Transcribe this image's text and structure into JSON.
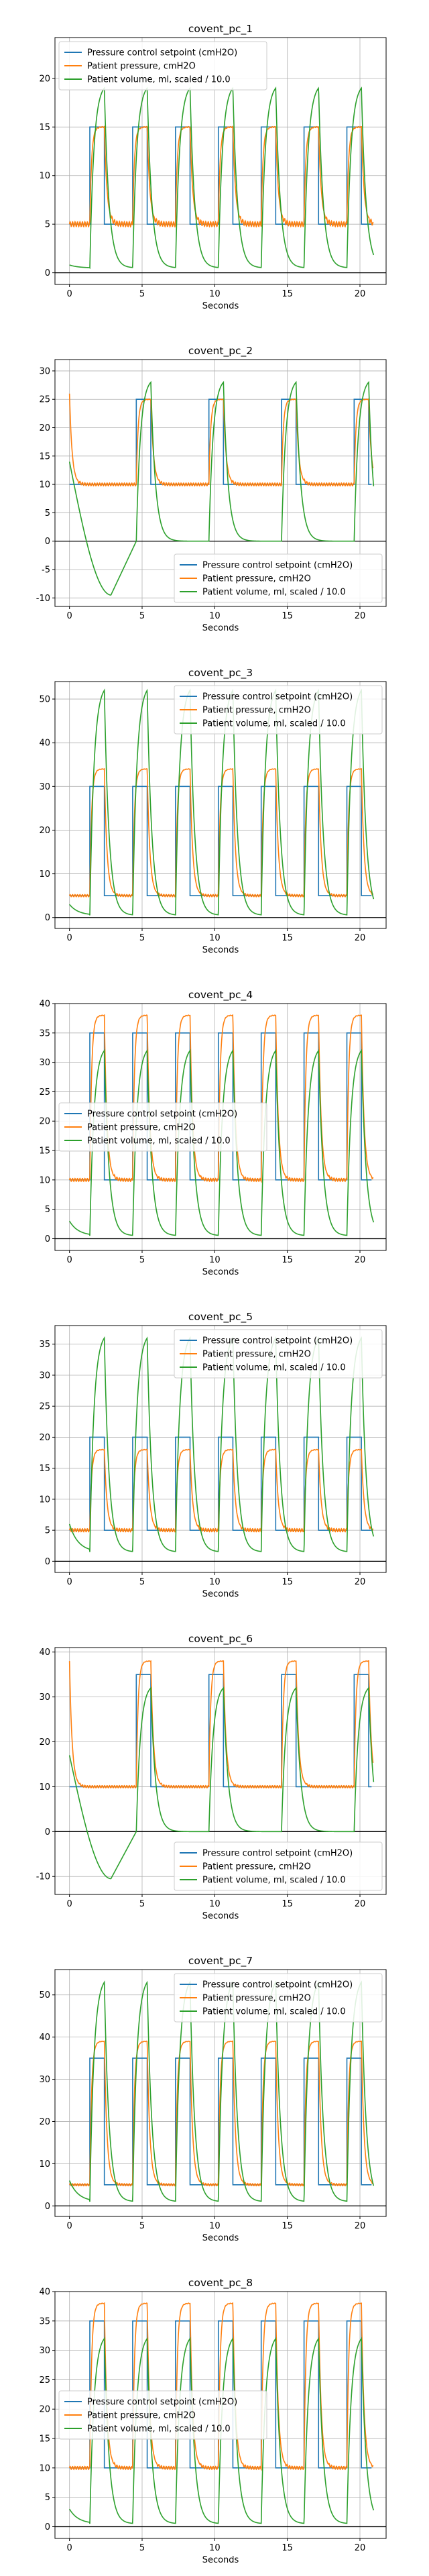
{
  "colors": {
    "setpoint": "#1f77b4",
    "pressure": "#ff7f0e",
    "volume": "#2ca02c",
    "grid": "#b0b0b0",
    "zero_line": "#000000"
  },
  "chart_data": [
    {
      "type": "line",
      "title": "covent_pc_1",
      "xlabel": "Seconds",
      "ylabel": "",
      "xlim": [
        -1,
        21.8
      ],
      "ylim": [
        -1.2,
        24.2
      ],
      "xticks": [
        0,
        5,
        10,
        15,
        20
      ],
      "yticks": [
        0,
        5,
        10,
        15,
        20
      ],
      "grid": true,
      "legend_position": "upper left",
      "zero_line": true,
      "breath": {
        "period": 2.95,
        "first_rise": 1.4,
        "insp_duration": 1.0
      },
      "series": [
        {
          "name": "Pressure control setpoint (cmH2O)",
          "key": "setpoint",
          "low": 5,
          "high": 15
        },
        {
          "name": "Patient pressure, cmH2O",
          "key": "pressure",
          "low": 5,
          "high": 15
        },
        {
          "name": "Patient volume, ml, scaled / 10.0",
          "key": "volume",
          "start": 0.8,
          "peak": 19,
          "trough": 0.5
        }
      ]
    },
    {
      "type": "line",
      "title": "covent_pc_2",
      "xlabel": "Seconds",
      "ylabel": "",
      "xlim": [
        -1,
        21.8
      ],
      "ylim": [
        -11.5,
        32
      ],
      "xticks": [
        0,
        5,
        10,
        15,
        20
      ],
      "yticks": [
        -10,
        -5,
        0,
        5,
        10,
        15,
        20,
        25,
        30
      ],
      "grid": true,
      "legend_position": "lower right",
      "zero_line": true,
      "breath": {
        "period": 5.0,
        "first_rise": 4.6,
        "insp_duration": 1.0
      },
      "series": [
        {
          "name": "Pressure control setpoint (cmH2O)",
          "key": "setpoint",
          "low": 10,
          "high": 25
        },
        {
          "name": "Patient pressure, cmH2O",
          "key": "pressure",
          "low": 10,
          "high": 25,
          "initial_spike": 26
        },
        {
          "name": "Patient volume, ml, scaled / 10.0",
          "key": "volume",
          "start": 14,
          "peak": 28,
          "trough": 0,
          "first_min": -9.5
        }
      ]
    },
    {
      "type": "line",
      "title": "covent_pc_3",
      "xlabel": "Seconds",
      "ylabel": "",
      "xlim": [
        -1,
        21.8
      ],
      "ylim": [
        -2.5,
        54
      ],
      "xticks": [
        0,
        5,
        10,
        15,
        20
      ],
      "yticks": [
        0,
        10,
        20,
        30,
        40,
        50
      ],
      "grid": true,
      "legend_position": "upper right",
      "zero_line": true,
      "breath": {
        "period": 2.95,
        "first_rise": 1.4,
        "insp_duration": 1.0
      },
      "series": [
        {
          "name": "Pressure control setpoint (cmH2O)",
          "key": "setpoint",
          "low": 5,
          "high": 30
        },
        {
          "name": "Patient pressure, cmH2O",
          "key": "pressure",
          "low": 5,
          "high": 34
        },
        {
          "name": "Patient volume, ml, scaled / 10.0",
          "key": "volume",
          "start": 3,
          "peak": 52,
          "trough": 0.5
        }
      ]
    },
    {
      "type": "line",
      "title": "covent_pc_4",
      "xlabel": "Seconds",
      "ylabel": "",
      "xlim": [
        -1,
        21.8
      ],
      "ylim": [
        -2,
        40
      ],
      "xticks": [
        0,
        5,
        10,
        15,
        20
      ],
      "yticks": [
        0,
        5,
        10,
        15,
        20,
        25,
        30,
        35,
        40
      ],
      "grid": true,
      "legend_position": "center left",
      "zero_line": true,
      "breath": {
        "period": 2.95,
        "first_rise": 1.4,
        "insp_duration": 1.0
      },
      "series": [
        {
          "name": "Pressure control setpoint (cmH2O)",
          "key": "setpoint",
          "low": 10,
          "high": 35
        },
        {
          "name": "Patient pressure, cmH2O",
          "key": "pressure",
          "low": 10,
          "high": 38
        },
        {
          "name": "Patient volume, ml, scaled / 10.0",
          "key": "volume",
          "start": 3,
          "peak": 32,
          "trough": 0.5
        }
      ]
    },
    {
      "type": "line",
      "title": "covent_pc_5",
      "xlabel": "Seconds",
      "ylabel": "",
      "xlim": [
        -1,
        21.8
      ],
      "ylim": [
        -1.8,
        38
      ],
      "xticks": [
        0,
        5,
        10,
        15,
        20
      ],
      "yticks": [
        0,
        5,
        10,
        15,
        20,
        25,
        30,
        35
      ],
      "grid": true,
      "legend_position": "upper right",
      "zero_line": true,
      "breath": {
        "period": 2.95,
        "first_rise": 1.4,
        "insp_duration": 1.0
      },
      "series": [
        {
          "name": "Pressure control setpoint (cmH2O)",
          "key": "setpoint",
          "low": 5,
          "high": 20
        },
        {
          "name": "Patient pressure, cmH2O",
          "key": "pressure",
          "low": 5,
          "high": 18
        },
        {
          "name": "Patient volume, ml, scaled / 10.0",
          "key": "volume",
          "start": 6,
          "peak": 36,
          "trough": 1.5
        }
      ]
    },
    {
      "type": "line",
      "title": "covent_pc_6",
      "xlabel": "Seconds",
      "ylabel": "",
      "xlim": [
        -1,
        21.8
      ],
      "ylim": [
        -14,
        41
      ],
      "xticks": [
        0,
        5,
        10,
        15,
        20
      ],
      "yticks": [
        -10,
        0,
        10,
        20,
        30,
        40
      ],
      "grid": true,
      "legend_position": "lower right",
      "zero_line": true,
      "breath": {
        "period": 5.0,
        "first_rise": 4.6,
        "insp_duration": 1.0
      },
      "series": [
        {
          "name": "Pressure control setpoint (cmH2O)",
          "key": "setpoint",
          "low": 10,
          "high": 35
        },
        {
          "name": "Patient pressure, cmH2O",
          "key": "pressure",
          "low": 10,
          "high": 38,
          "initial_spike": 38
        },
        {
          "name": "Patient volume, ml, scaled / 10.0",
          "key": "volume",
          "start": 17,
          "peak": 32,
          "trough": 0,
          "first_min": -10.5
        }
      ]
    },
    {
      "type": "line",
      "title": "covent_pc_7",
      "xlabel": "Seconds",
      "ylabel": "",
      "xlim": [
        -1,
        21.8
      ],
      "ylim": [
        -2.5,
        56
      ],
      "xticks": [
        0,
        5,
        10,
        15,
        20
      ],
      "yticks": [
        0,
        10,
        20,
        30,
        40,
        50
      ],
      "grid": true,
      "legend_position": "upper right",
      "zero_line": true,
      "breath": {
        "period": 2.95,
        "first_rise": 1.4,
        "insp_duration": 1.0
      },
      "series": [
        {
          "name": "Pressure control setpoint (cmH2O)",
          "key": "setpoint",
          "low": 5,
          "high": 35
        },
        {
          "name": "Patient pressure, cmH2O",
          "key": "pressure",
          "low": 5,
          "high": 39
        },
        {
          "name": "Patient volume, ml, scaled / 10.0",
          "key": "volume",
          "start": 6,
          "peak": 53,
          "trough": 1
        }
      ]
    },
    {
      "type": "line",
      "title": "covent_pc_8",
      "xlabel": "Seconds",
      "ylabel": "",
      "xlim": [
        -1,
        21.8
      ],
      "ylim": [
        -2,
        40
      ],
      "xticks": [
        0,
        5,
        10,
        15,
        20
      ],
      "yticks": [
        0,
        5,
        10,
        15,
        20,
        25,
        30,
        35,
        40
      ],
      "grid": true,
      "legend_position": "center left",
      "zero_line": true,
      "breath": {
        "period": 2.95,
        "first_rise": 1.4,
        "insp_duration": 1.0
      },
      "series": [
        {
          "name": "Pressure control setpoint (cmH2O)",
          "key": "setpoint",
          "low": 10,
          "high": 35
        },
        {
          "name": "Patient pressure, cmH2O",
          "key": "pressure",
          "low": 10,
          "high": 38
        },
        {
          "name": "Patient volume, ml, scaled / 10.0",
          "key": "volume",
          "start": 3,
          "peak": 32,
          "trough": 0.5
        }
      ]
    }
  ]
}
